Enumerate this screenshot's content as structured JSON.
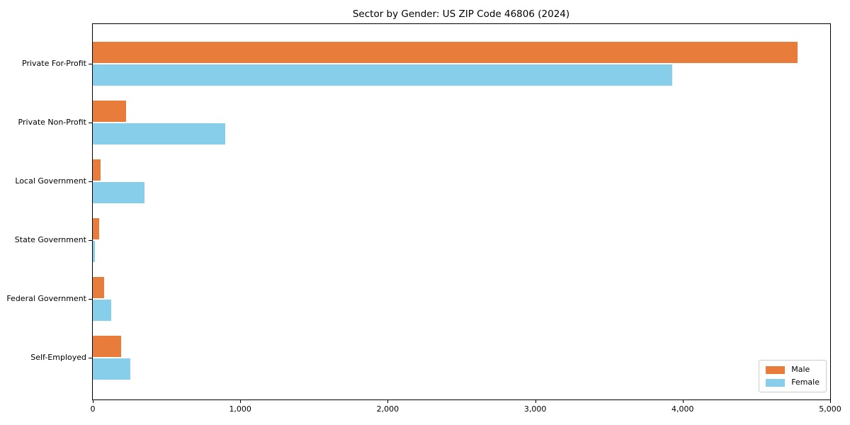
{
  "chart_data": {
    "type": "bar",
    "orientation": "horizontal",
    "title": "Sector by Gender: US ZIP Code 46806 (2024)",
    "categories": [
      "Private For-Profit",
      "Private Non-Profit",
      "Local Government",
      "State Government",
      "Federal Government",
      "Self-Employed"
    ],
    "series": [
      {
        "name": "Male",
        "color": "#e87d3b",
        "values": [
          4780,
          225,
          55,
          45,
          75,
          190
        ]
      },
      {
        "name": "Female",
        "color": "#87ceeb",
        "values": [
          3930,
          900,
          350,
          15,
          125,
          255
        ]
      }
    ],
    "xlabel": "",
    "ylabel": "",
    "xlim": [
      0,
      5000
    ],
    "xticks": [
      0,
      1000,
      2000,
      3000,
      4000,
      5000
    ],
    "xtick_labels": [
      "0",
      "1,000",
      "2,000",
      "3,000",
      "4,000",
      "5,000"
    ],
    "grid": false,
    "legend_position": "lower right",
    "spine_color": "#000000",
    "background_color": "#ffffff"
  }
}
